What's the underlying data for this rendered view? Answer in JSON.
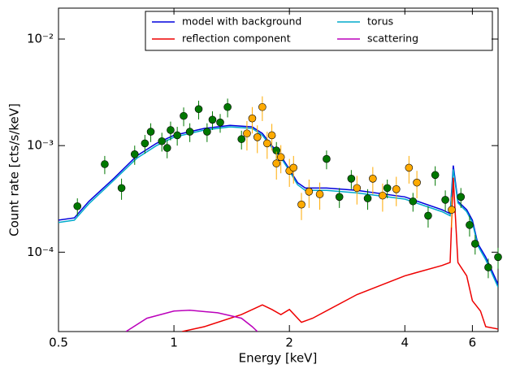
{
  "chart_data": {
    "type": "line",
    "xlabel": "Energy [keV]",
    "ylabel": "Count rate [cts/s/keV]",
    "xscale": "log",
    "yscale": "log",
    "xlim": [
      0.5,
      7
    ],
    "ylim": [
      1.8e-05,
      0.0195
    ],
    "xticks": [
      0.5,
      1,
      2,
      4,
      6
    ],
    "yticks": [
      {
        "value": 0.0001,
        "label": "10⁻⁴"
      },
      {
        "value": 0.001,
        "label": "10⁻³"
      },
      {
        "value": 0.01,
        "label": "10⁻²"
      }
    ],
    "legend": "upper right",
    "series": [
      {
        "name": "model with background",
        "color": "#0000dd",
        "x": [
          0.5,
          0.55,
          0.6,
          0.7,
          0.8,
          0.9,
          1.0,
          1.2,
          1.4,
          1.6,
          1.7,
          1.8,
          1.9,
          2.0,
          2.1,
          2.2,
          2.5,
          3,
          4,
          5,
          5.25,
          5.35,
          5.5,
          5.8,
          6,
          6.2,
          6.5,
          7
        ],
        "values": [
          0.0002,
          0.00021,
          0.0003,
          0.0005,
          0.0008,
          0.00105,
          0.00125,
          0.00145,
          0.00155,
          0.0015,
          0.0013,
          0.001,
          0.0008,
          0.0006,
          0.00045,
          0.0004,
          0.0004,
          0.00038,
          0.00033,
          0.00025,
          0.00023,
          0.00065,
          0.0003,
          0.00025,
          0.0002,
          0.00012,
          9e-05,
          5e-05
        ]
      },
      {
        "name": "torus",
        "color": "#00aacc",
        "x": [
          0.5,
          0.55,
          0.6,
          0.7,
          0.8,
          0.9,
          1.0,
          1.2,
          1.4,
          1.6,
          1.7,
          1.8,
          1.9,
          2.0,
          2.1,
          2.2,
          2.5,
          3,
          4,
          5,
          5.25,
          5.35,
          5.5,
          5.8,
          6,
          6.2,
          6.5,
          7
        ],
        "values": [
          0.00019,
          0.0002,
          0.000285,
          0.00048,
          0.00076,
          0.001,
          0.0012,
          0.0014,
          0.0015,
          0.00145,
          0.00125,
          0.00096,
          0.00077,
          0.00058,
          0.00043,
          0.00038,
          0.00038,
          0.00036,
          0.000315,
          0.00024,
          0.00022,
          0.0006,
          0.00029,
          0.00024,
          0.00019,
          0.000115,
          8.5e-05,
          4.7e-05
        ]
      },
      {
        "name": "reflection component",
        "color": "#ee0000",
        "x": [
          1.05,
          1.2,
          1.5,
          1.7,
          1.8,
          1.9,
          2.0,
          2.15,
          2.3,
          3,
          4,
          5,
          5.25,
          5.35,
          5.5,
          5.8,
          6,
          6.3,
          6.5,
          7
        ],
        "values": [
          1.8e-05,
          2e-05,
          2.6e-05,
          3.2e-05,
          2.9e-05,
          2.6e-05,
          2.9e-05,
          2.2e-05,
          2.4e-05,
          4e-05,
          6e-05,
          7.5e-05,
          8e-05,
          0.0005,
          8e-05,
          6e-05,
          3.5e-05,
          2.8e-05,
          2e-05,
          1.9e-05
        ]
      },
      {
        "name": "scattering",
        "color": "#bb00bb",
        "x": [
          0.75,
          0.85,
          1.0,
          1.1,
          1.3,
          1.5,
          1.6,
          1.65
        ],
        "values": [
          1.8e-05,
          2.4e-05,
          2.8e-05,
          2.85e-05,
          2.7e-05,
          2.4e-05,
          2e-05,
          1.8e-05
        ]
      }
    ],
    "points": [
      {
        "color": "#007700",
        "x": [
          0.56,
          0.66,
          0.73,
          0.79,
          0.84,
          0.87,
          0.93,
          0.96,
          0.98,
          1.02,
          1.06,
          1.1,
          1.16,
          1.22,
          1.26,
          1.32,
          1.38,
          1.5,
          1.85,
          2.5,
          2.7,
          2.9,
          3.2,
          3.6,
          4.2,
          4.6,
          4.8,
          5.1,
          5.6,
          5.9,
          6.1,
          6.6,
          7.0
        ],
        "values": [
          0.00027,
          0.00067,
          0.0004,
          0.00083,
          0.00105,
          0.00135,
          0.0011,
          0.00095,
          0.0014,
          0.00125,
          0.0019,
          0.00135,
          0.0022,
          0.00135,
          0.00175,
          0.00165,
          0.0023,
          0.00115,
          0.0009,
          0.00075,
          0.00033,
          0.00049,
          0.00032,
          0.0004,
          0.0003,
          0.00022,
          0.00053,
          0.00031,
          0.00033,
          0.00018,
          0.00012,
          7.2e-05,
          9e-05
        ],
        "errors": [
          5e-05,
          0.00013,
          9e-05,
          0.00017,
          0.00021,
          0.00027,
          0.00022,
          0.00019,
          0.00028,
          0.00025,
          0.00038,
          0.00027,
          0.00044,
          0.00027,
          0.00035,
          0.00033,
          0.00046,
          0.00023,
          0.00018,
          0.00015,
          7e-05,
          0.0001,
          7e-05,
          8e-05,
          6e-05,
          5e-05,
          0.00011,
          7e-05,
          7e-05,
          4e-05,
          2.5e-05,
          1.5e-05,
          2e-05
        ]
      },
      {
        "color": "#ffaa00",
        "x": [
          1.55,
          1.6,
          1.65,
          1.7,
          1.75,
          1.8,
          1.85,
          1.9,
          2.0,
          2.05,
          2.15,
          2.25,
          2.4,
          3.0,
          3.3,
          3.5,
          3.8,
          4.1,
          4.3,
          5.3
        ],
        "values": [
          0.0013,
          0.0018,
          0.0012,
          0.0023,
          0.00105,
          0.00125,
          0.00068,
          0.00078,
          0.00058,
          0.00062,
          0.00028,
          0.00037,
          0.00035,
          0.0004,
          0.00049,
          0.00034,
          0.00039,
          0.00062,
          0.00045,
          0.00025
        ],
        "errors": [
          0.0004,
          0.0005,
          0.00035,
          0.0006,
          0.0003,
          0.00035,
          0.0002,
          0.00023,
          0.00017,
          0.00018,
          8e-05,
          0.00011,
          0.0001,
          0.00012,
          0.00014,
          0.0001,
          0.00012,
          0.00018,
          0.00013,
          8e-05
        ]
      }
    ]
  }
}
